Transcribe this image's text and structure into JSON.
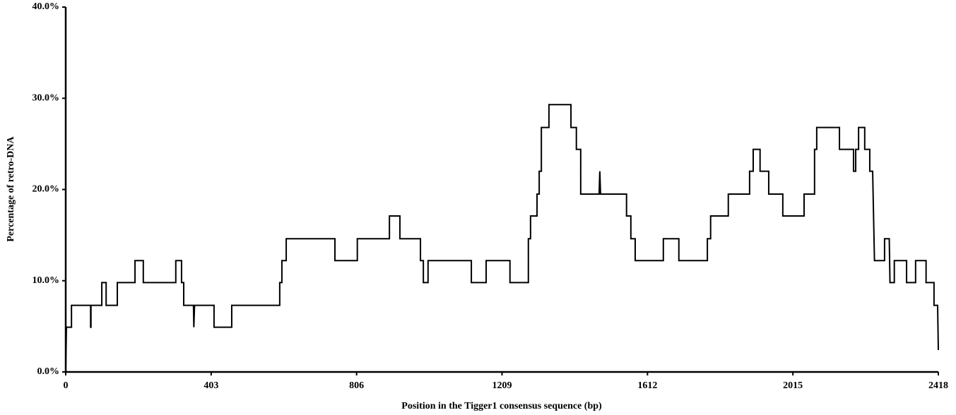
{
  "chart_data": {
    "type": "line",
    "x_label": "Position in the Tigger1 consensus sequence (bp)",
    "y_label": "Percentage of retro-DNA",
    "xlim": [
      0,
      2418
    ],
    "xticks": [
      0,
      403,
      806,
      1209,
      1612,
      2015,
      2418
    ],
    "ylim": [
      0,
      40
    ],
    "yticks": [
      {
        "value": 0,
        "label": "0.0%"
      },
      {
        "value": 10,
        "label": "10.0%"
      },
      {
        "value": 20,
        "label": "20.0%"
      },
      {
        "value": 30,
        "label": "30.0%"
      },
      {
        "value": 40,
        "label": "40.0%"
      }
    ],
    "series": [
      {
        "color": "#000000",
        "x": [
          0,
          2,
          16,
          16,
          69,
          69,
          70,
          70,
          100,
          100,
          112,
          112,
          143,
          143,
          192,
          192,
          215,
          215,
          305,
          305,
          321,
          321,
          327,
          327,
          354,
          355,
          357,
          411,
          411,
          460,
          460,
          593,
          593,
          599,
          599,
          611,
          611,
          746,
          746,
          808,
          808,
          897,
          897,
          926,
          926,
          983,
          983,
          991,
          991,
          1004,
          1004,
          1124,
          1124,
          1165,
          1165,
          1231,
          1231,
          1282,
          1282,
          1288,
          1288,
          1306,
          1306,
          1312,
          1312,
          1318,
          1318,
          1339,
          1339,
          1400,
          1400,
          1415,
          1415,
          1427,
          1427,
          1478,
          1480,
          1482,
          1554,
          1554,
          1566,
          1566,
          1578,
          1578,
          1656,
          1656,
          1699,
          1699,
          1778,
          1778,
          1787,
          1787,
          1836,
          1836,
          1895,
          1895,
          1905,
          1905,
          1924,
          1924,
          1948,
          1948,
          1987,
          1987,
          2046,
          2046,
          2075,
          2075,
          2081,
          2081,
          2144,
          2144,
          2183,
          2183,
          2189,
          2189,
          2197,
          2197,
          2214,
          2214,
          2228,
          2228,
          2236,
          2241,
          2269,
          2269,
          2282,
          2284,
          2296,
          2296,
          2330,
          2330,
          2355,
          2355,
          2384,
          2384,
          2406,
          2406,
          2416,
          2418
        ],
        "values": [
          0,
          4.9,
          4.9,
          7.3,
          7.3,
          4.9,
          4.9,
          7.3,
          7.3,
          9.8,
          9.8,
          7.3,
          7.3,
          9.8,
          9.8,
          12.2,
          12.2,
          9.8,
          9.8,
          12.2,
          12.2,
          9.8,
          9.8,
          7.3,
          7.3,
          4.9,
          7.3,
          7.3,
          4.9,
          4.9,
          7.3,
          7.3,
          9.8,
          9.8,
          12.2,
          12.2,
          14.6,
          14.6,
          12.2,
          12.2,
          14.6,
          14.6,
          17.1,
          17.1,
          14.6,
          14.6,
          12.2,
          12.2,
          9.8,
          9.8,
          12.2,
          12.2,
          9.8,
          9.8,
          12.2,
          12.2,
          9.8,
          9.8,
          14.6,
          14.6,
          17.1,
          17.1,
          19.5,
          19.5,
          22.0,
          22.0,
          26.8,
          26.8,
          29.3,
          29.3,
          26.8,
          26.8,
          24.4,
          24.4,
          19.5,
          19.5,
          22.0,
          19.5,
          19.5,
          17.1,
          17.1,
          14.6,
          14.6,
          12.2,
          12.2,
          14.6,
          14.6,
          12.2,
          12.2,
          14.6,
          14.6,
          17.1,
          17.1,
          19.5,
          19.5,
          22.0,
          22.0,
          24.4,
          24.4,
          22.0,
          22.0,
          19.5,
          19.5,
          17.1,
          17.1,
          19.5,
          19.5,
          24.4,
          24.4,
          26.8,
          26.8,
          24.4,
          24.4,
          22.0,
          22.0,
          24.4,
          24.4,
          26.8,
          26.8,
          24.4,
          24.4,
          22.0,
          22.0,
          12.2,
          12.2,
          14.6,
          14.6,
          9.8,
          9.8,
          12.2,
          12.2,
          9.8,
          9.8,
          12.2,
          12.2,
          9.8,
          9.8,
          7.3,
          7.3,
          2.4
        ]
      }
    ]
  }
}
